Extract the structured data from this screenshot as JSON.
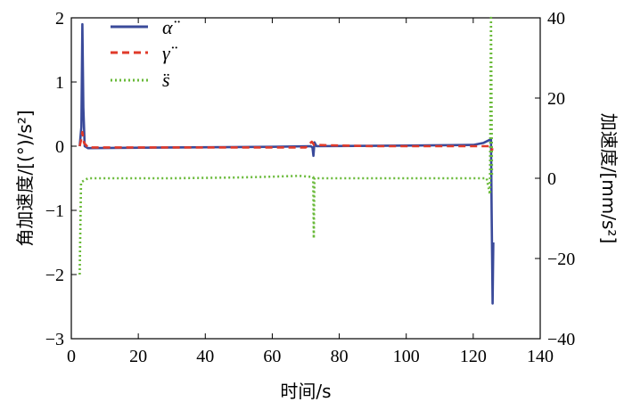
{
  "chart_data": {
    "type": "line",
    "xlabel": "时间/s",
    "ylabel_left": "角加速度/[(°)/s²]",
    "ylabel_right": "加速度/[mm/s²]",
    "xlim": [
      0,
      140
    ],
    "ylim_left": [
      -3,
      2
    ],
    "ylim_right": [
      -40,
      40
    ],
    "x_ticks": [
      0,
      20,
      40,
      60,
      80,
      100,
      120,
      140
    ],
    "y_left_ticks": [
      -3,
      -2,
      -1,
      0,
      1,
      2
    ],
    "y_right_ticks": [
      -40,
      -20,
      0,
      20,
      40
    ],
    "x_tick_labels": [
      "0",
      "20",
      "40",
      "60",
      "80",
      "100",
      "120",
      "140"
    ],
    "y_left_tick_labels": [
      "−3",
      "−2",
      "−1",
      "0",
      "1",
      "2"
    ],
    "y_right_tick_labels": [
      "−40",
      "−20",
      "0",
      "20",
      "40"
    ],
    "grid": false,
    "legend_position": "top-left",
    "series": [
      {
        "name": "α̈",
        "axis": "left",
        "color": "#3a4a9a",
        "style": "solid",
        "points": [
          [
            2.5,
            0
          ],
          [
            3.0,
            0.3
          ],
          [
            3.3,
            1.9
          ],
          [
            3.6,
            0.6
          ],
          [
            4.0,
            0
          ],
          [
            5,
            -0.03
          ],
          [
            30,
            -0.02
          ],
          [
            60,
            -0.01
          ],
          [
            71.5,
            0.0
          ],
          [
            72.0,
            -0.02
          ],
          [
            72.3,
            -0.15
          ],
          [
            72.6,
            0.06
          ],
          [
            73.2,
            0.0
          ],
          [
            100,
            0.01
          ],
          [
            120,
            0.02
          ],
          [
            123,
            0.05
          ],
          [
            125,
            0.1
          ],
          [
            125.3,
            0.12
          ],
          [
            125.5,
            -1.0
          ],
          [
            125.8,
            -2.45
          ],
          [
            126.0,
            -1.5
          ]
        ]
      },
      {
        "name": "γ̈",
        "axis": "left",
        "color": "#e03a2a",
        "style": "dashed",
        "points": [
          [
            2.5,
            0
          ],
          [
            3.0,
            0.12
          ],
          [
            3.3,
            0.22
          ],
          [
            3.8,
            0.05
          ],
          [
            5,
            -0.02
          ],
          [
            70,
            -0.02
          ],
          [
            71.8,
            0.07
          ],
          [
            72.5,
            0.02
          ],
          [
            90,
            0
          ],
          [
            120,
            0
          ],
          [
            125,
            0
          ],
          [
            125.3,
            -0.05
          ],
          [
            126,
            -0.05
          ]
        ]
      },
      {
        "name": "s̈",
        "axis": "right",
        "color": "#6aba3a",
        "style": "dotted",
        "points": [
          [
            2.5,
            -24
          ],
          [
            2.9,
            -1
          ],
          [
            5,
            0
          ],
          [
            30,
            0
          ],
          [
            50,
            0.2
          ],
          [
            60,
            0.4
          ],
          [
            68,
            0.6
          ],
          [
            71,
            0.4
          ],
          [
            72.2,
            0.3
          ],
          [
            72.4,
            -15
          ],
          [
            72.6,
            0
          ],
          [
            80,
            0
          ],
          [
            100,
            0
          ],
          [
            118,
            0
          ],
          [
            121,
            0
          ],
          [
            124,
            0
          ],
          [
            125.0,
            -4
          ],
          [
            125.3,
            40
          ],
          [
            125.6,
            0.5
          ]
        ]
      }
    ]
  }
}
